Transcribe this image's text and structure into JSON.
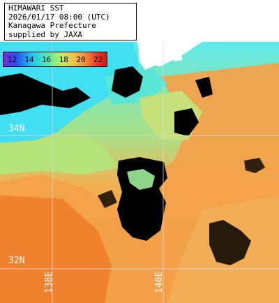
{
  "header": {
    "line1": "HIMAWARI SST",
    "line2": "2026/01/17 08:00 (UTC)",
    "line3": "Kanagawa Prefecture",
    "line4": "supplied by JAXA"
  },
  "colorbar": {
    "ticks": [
      "12",
      "14",
      "16",
      "18",
      "20",
      "22"
    ]
  },
  "grid_labels": {
    "lat_34": "34N",
    "lat_32": "32N",
    "lon_138": "138E",
    "lon_140": "140E"
  },
  "colors": {
    "land": "#ffffff",
    "cloud_mask": "#000000",
    "cool_water": "#3fe0f0",
    "mild_water": "#9ee08a",
    "warm_water": "#f2a44c",
    "hot_water": "#f07a2c",
    "graticule": "#d8d8d8"
  }
}
